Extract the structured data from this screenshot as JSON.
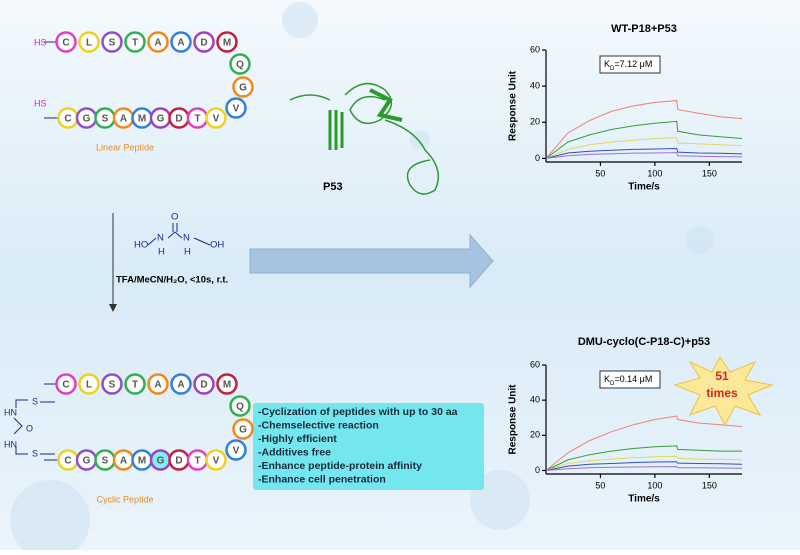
{
  "linear_peptide": {
    "thiols": [
      "HS",
      "HS"
    ],
    "top": [
      "C",
      "L",
      "S",
      "T",
      "A",
      "A",
      "D",
      "M"
    ],
    "turn": [
      "Q",
      "G",
      "V"
    ],
    "bottom": [
      "C",
      "G",
      "S",
      "A",
      "M",
      "G",
      "D",
      "T",
      "V"
    ],
    "label": "Linear Peptide"
  },
  "protein_label": "P53",
  "reagent": {
    "structure": [
      "HO",
      "N",
      "H",
      "O",
      "N",
      "H",
      "OH"
    ],
    "conditions": "TFA/MeCN/H₂O, <10s, r.t."
  },
  "cyclic_peptide": {
    "linker": [
      "HN",
      "O",
      "HN",
      "S",
      "S"
    ],
    "top": [
      "C",
      "L",
      "S",
      "T",
      "A",
      "A",
      "D",
      "M"
    ],
    "turn": [
      "Q",
      "G",
      "V"
    ],
    "bottom": [
      "C",
      "G",
      "S",
      "A",
      "M",
      "G",
      "D",
      "T",
      "V"
    ],
    "label": "Cyclic Peptide"
  },
  "features": [
    "-Cyclization of peptides with up to 30 aa",
    "-Chemselective reaction",
    "-Highly efficient",
    "-Additives free",
    "-Enhance peptide-protein affinity",
    "-Enhance cell penetration"
  ],
  "fold_badge": {
    "number": "51",
    "text": "times"
  },
  "chart_data": [
    {
      "type": "line",
      "title": "WT-P18+P53",
      "kd_symbol": "K",
      "kd_sub": "D",
      "kd_value": "=7.12 μM",
      "x_label": "Time/s",
      "y_label": "Response Unit",
      "xlim": [
        0,
        180
      ],
      "ylim": [
        -2,
        60
      ],
      "xticks": [
        50,
        100,
        150
      ],
      "yticks": [
        0,
        20,
        40,
        60
      ],
      "x": [
        0,
        20,
        40,
        60,
        80,
        100,
        120,
        121,
        140,
        160,
        180
      ],
      "series": [
        {
          "color": "#f08070",
          "values": [
            0,
            14,
            21,
            26,
            29,
            31,
            32,
            27,
            25,
            23,
            22
          ]
        },
        {
          "color": "#3a9a3a",
          "values": [
            0,
            9,
            13,
            16,
            18,
            19.5,
            20.5,
            15,
            13,
            12,
            11
          ]
        },
        {
          "color": "#e0d860",
          "values": [
            0,
            5,
            7.5,
            9,
            10,
            11,
            11.5,
            8.5,
            8,
            7.5,
            7
          ]
        },
        {
          "color": "#3050c0",
          "values": [
            0,
            3,
            4,
            4.5,
            5,
            5.2,
            5.5,
            3.5,
            3,
            2.8,
            2.5
          ]
        },
        {
          "color": "#a070d0",
          "values": [
            0,
            1.5,
            2.2,
            2.6,
            2.9,
            3,
            3.2,
            1.5,
            1.2,
            1,
            0.8
          ]
        }
      ]
    },
    {
      "type": "line",
      "title": "DMU-cyclo(C-P18-C)+p53",
      "kd_symbol": "K",
      "kd_sub": "D",
      "kd_value": "=0.14 μM",
      "x_label": "Time/s",
      "y_label": "Response Unit",
      "xlim": [
        0,
        180
      ],
      "ylim": [
        -2,
        60
      ],
      "xticks": [
        50,
        100,
        150
      ],
      "yticks": [
        0,
        20,
        40,
        60
      ],
      "x": [
        0,
        20,
        40,
        60,
        80,
        100,
        120,
        121,
        140,
        160,
        180
      ],
      "series": [
        {
          "color": "#f08070",
          "values": [
            0,
            10,
            17,
            22,
            26,
            29,
            31,
            29,
            27,
            26,
            25
          ]
        },
        {
          "color": "#3a9a3a",
          "values": [
            0,
            6,
            9,
            11,
            12.5,
            13.5,
            14,
            12,
            11.5,
            11,
            11
          ]
        },
        {
          "color": "#e0d860",
          "values": [
            0,
            4,
            5.5,
            6.5,
            7.2,
            7.8,
            8,
            6.8,
            6.5,
            6.3,
            6
          ]
        },
        {
          "color": "#3050c0",
          "values": [
            0,
            2.5,
            3.5,
            4,
            4.5,
            4.8,
            5,
            4.2,
            4,
            3.8,
            3.6
          ]
        },
        {
          "color": "#a070d0",
          "values": [
            0,
            1,
            1.5,
            1.8,
            2,
            2.1,
            2.2,
            1.6,
            1.5,
            1.4,
            1.3
          ]
        }
      ]
    }
  ]
}
